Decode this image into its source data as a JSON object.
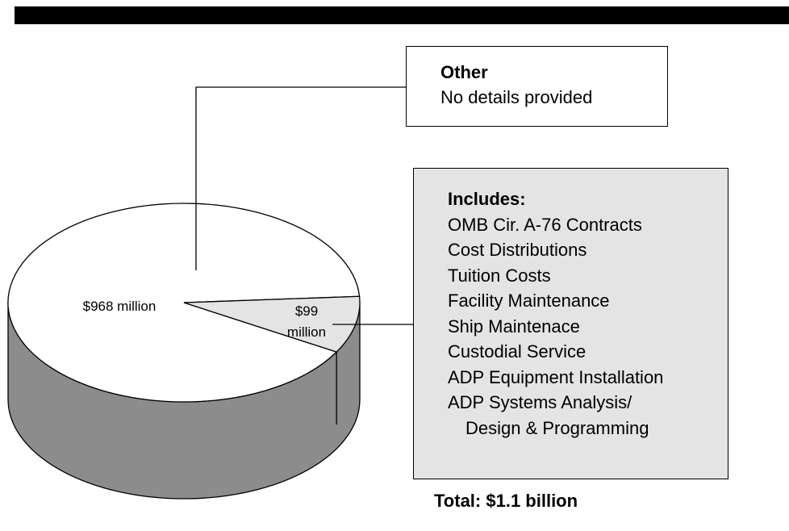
{
  "chart_data": {
    "type": "pie",
    "slices": [
      {
        "label": "$968 million",
        "value": 968,
        "color": "#ffffff"
      },
      {
        "label": "$99 million",
        "value": 99,
        "color": "#e4e4e4"
      }
    ],
    "side_color": "#8c8c8c"
  },
  "slice_labels": {
    "large": "$968 million",
    "small_line1": "$99",
    "small_line2": "million"
  },
  "other_box": {
    "title": "Other",
    "text": "No details provided"
  },
  "includes_box": {
    "title": "Includes:",
    "items": [
      "OMB Cir. A-76 Contracts",
      "Cost Distributions",
      "Tuition Costs",
      "Facility Maintenance",
      "Ship Maintenace",
      "Custodial Service",
      "ADP Equipment Installation",
      "ADP Systems Analysis/",
      "Design & Programming"
    ]
  },
  "total": "Total: $1.1 billion"
}
